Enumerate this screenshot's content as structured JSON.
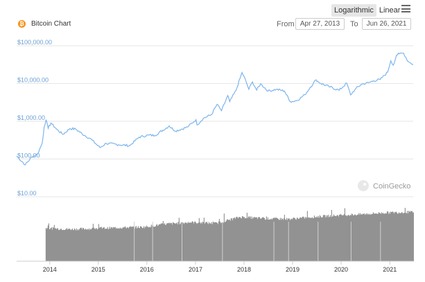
{
  "header": {
    "title": "Bitcoin Chart",
    "scale_options": [
      "Logarithmic",
      "Linear"
    ],
    "active_scale": "Logarithmic",
    "from_label": "From",
    "from_value": "Apr 27, 2013",
    "to_label": "To",
    "to_value": "Jun 26, 2021",
    "coin_icon": "bitcoin-icon",
    "menu_icon": "hamburger-menu-icon"
  },
  "watermark": "CoinGecko",
  "colors": {
    "price_line": "#7cb5ec",
    "volume": "#8c8c8c",
    "grid": "#e6e6e6",
    "coin": "#f7931a"
  },
  "chart_data": [
    {
      "type": "line",
      "yscale": "log",
      "ylim": [
        10,
        100000
      ],
      "y_tick_labels": [
        "$10.00",
        "$100.00",
        "$1,000.00",
        "$10,000.00",
        "$100,000.00"
      ],
      "y_tick_values": [
        10,
        100,
        1000,
        10000,
        100000
      ],
      "grid": true,
      "series": [
        {
          "x": [
            "2013-04-27",
            "2013-07-01",
            "2013-08-15",
            "2013-10-01",
            "2013-11-05",
            "2013-11-20",
            "2013-12-04",
            "2013-12-20",
            "2014-01-10",
            "2014-02-25",
            "2014-04-10",
            "2014-06-01",
            "2014-07-15",
            "2014-09-20",
            "2014-11-01",
            "2015-01-14",
            "2015-03-01",
            "2015-06-01",
            "2015-08-25",
            "2015-11-04",
            "2016-01-15",
            "2016-03-01",
            "2016-06-17",
            "2016-08-02",
            "2016-11-01",
            "2017-01-04",
            "2017-01-12",
            "2017-03-01",
            "2017-05-01",
            "2017-06-12",
            "2017-07-16",
            "2017-09-01",
            "2017-09-15",
            "2017-11-01",
            "2017-12-17",
            "2018-01-15",
            "2018-02-06",
            "2018-03-05",
            "2018-04-06",
            "2018-05-05",
            "2018-07-01",
            "2018-09-01",
            "2018-11-01",
            "2018-12-15",
            "2019-02-01",
            "2019-04-02",
            "2019-05-15",
            "2019-06-26",
            "2019-08-01",
            "2019-10-01",
            "2019-12-17",
            "2020-02-12",
            "2020-03-12",
            "2020-04-15",
            "2020-06-01",
            "2020-07-27",
            "2020-09-01",
            "2020-10-21",
            "2020-12-16",
            "2021-01-08",
            "2021-01-27",
            "2021-02-21",
            "2021-03-13",
            "2021-04-14",
            "2021-05-19",
            "2021-06-01",
            "2021-06-26"
          ],
          "values": [
            120,
            70,
            110,
            135,
            260,
            700,
            1100,
            650,
            900,
            600,
            450,
            640,
            620,
            420,
            350,
            200,
            260,
            240,
            225,
            380,
            430,
            420,
            750,
            550,
            700,
            1100,
            800,
            1200,
            1500,
            2800,
            1900,
            4800,
            3300,
            6500,
            19500,
            11500,
            7000,
            11000,
            6700,
            9800,
            6300,
            7000,
            6300,
            3300,
            3500,
            5000,
            8000,
            12500,
            10000,
            8300,
            6600,
            10200,
            5000,
            7000,
            9500,
            10500,
            11800,
            12800,
            20000,
            40000,
            30500,
            57000,
            61000,
            64000,
            38000,
            36000,
            32000
          ]
        }
      ]
    },
    {
      "type": "bar",
      "description_series": "volume",
      "x_tick_labels": [
        "2014",
        "2015",
        "2016",
        "2017",
        "2018",
        "2019",
        "2020",
        "2021"
      ],
      "series": [
        {
          "x": [
            "2013-12-01",
            "2014-06-01",
            "2014-12-01",
            "2015-06-01",
            "2015-12-01",
            "2016-06-01",
            "2016-12-01",
            "2017-06-01",
            "2017-12-01",
            "2018-06-01",
            "2018-12-01",
            "2019-06-01",
            "2019-12-01",
            "2020-06-01",
            "2020-12-01",
            "2021-06-01"
          ],
          "values": [
            0.62,
            0.6,
            0.61,
            0.63,
            0.64,
            0.7,
            0.73,
            0.71,
            0.83,
            0.8,
            0.79,
            0.83,
            0.86,
            0.88,
            0.91,
            0.92
          ]
        }
      ]
    }
  ]
}
